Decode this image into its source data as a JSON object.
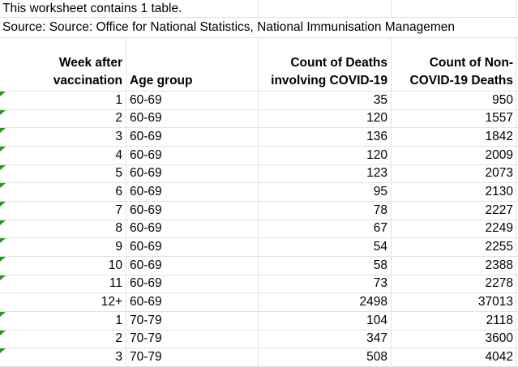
{
  "notes": {
    "table_note": "This worksheet contains 1 table.",
    "source": "Source: Source: Office for National Statistics, National Immunisation Managemen"
  },
  "table": {
    "headers": [
      "Week after vaccination",
      "Age group",
      "Count of Deaths involving COVID-19",
      "Count of Non-COVID-19 Deaths"
    ],
    "rows": [
      {
        "week": "1",
        "age_group": "60-69",
        "covid_deaths": "35",
        "non_covid_deaths": "950",
        "error_flag": true
      },
      {
        "week": "2",
        "age_group": "60-69",
        "covid_deaths": "120",
        "non_covid_deaths": "1557",
        "error_flag": true
      },
      {
        "week": "3",
        "age_group": "60-69",
        "covid_deaths": "136",
        "non_covid_deaths": "1842",
        "error_flag": true
      },
      {
        "week": "4",
        "age_group": "60-69",
        "covid_deaths": "120",
        "non_covid_deaths": "2009",
        "error_flag": true
      },
      {
        "week": "5",
        "age_group": "60-69",
        "covid_deaths": "123",
        "non_covid_deaths": "2073",
        "error_flag": true
      },
      {
        "week": "6",
        "age_group": "60-69",
        "covid_deaths": "95",
        "non_covid_deaths": "2130",
        "error_flag": true
      },
      {
        "week": "7",
        "age_group": "60-69",
        "covid_deaths": "78",
        "non_covid_deaths": "2227",
        "error_flag": true
      },
      {
        "week": "8",
        "age_group": "60-69",
        "covid_deaths": "67",
        "non_covid_deaths": "2249",
        "error_flag": true
      },
      {
        "week": "9",
        "age_group": "60-69",
        "covid_deaths": "54",
        "non_covid_deaths": "2255",
        "error_flag": true
      },
      {
        "week": "10",
        "age_group": "60-69",
        "covid_deaths": "58",
        "non_covid_deaths": "2388",
        "error_flag": true
      },
      {
        "week": "11",
        "age_group": "60-69",
        "covid_deaths": "73",
        "non_covid_deaths": "2278",
        "error_flag": true
      },
      {
        "week": "12+",
        "age_group": "60-69",
        "covid_deaths": "2498",
        "non_covid_deaths": "37013",
        "error_flag": false
      },
      {
        "week": "1",
        "age_group": "70-79",
        "covid_deaths": "104",
        "non_covid_deaths": "2118",
        "error_flag": true
      },
      {
        "week": "2",
        "age_group": "70-79",
        "covid_deaths": "347",
        "non_covid_deaths": "3600",
        "error_flag": true
      },
      {
        "week": "3",
        "age_group": "70-79",
        "covid_deaths": "508",
        "non_covid_deaths": "4042",
        "error_flag": true
      }
    ]
  },
  "colors": {
    "gridline": "#e2e2e2",
    "error_flag_green": "#1f9d1f",
    "text": "#000000",
    "background": "#ffffff"
  }
}
